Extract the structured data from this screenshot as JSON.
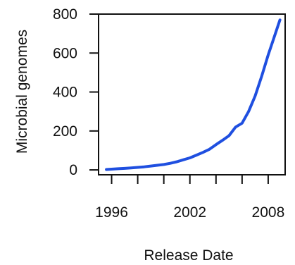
{
  "chart_data": {
    "type": "line",
    "xlabel": "Release Date",
    "ylabel": "Microbial genomes",
    "xlim": [
      1995.0,
      2009.3
    ],
    "ylim": [
      -25,
      800
    ],
    "xticks": [
      1996,
      1998,
      2000,
      2002,
      2004,
      2006,
      2008
    ],
    "xtick_labels": [
      "1996",
      "",
      "",
      "2002",
      "",
      "",
      "2008"
    ],
    "yticks": [
      0,
      200,
      400,
      600,
      800
    ],
    "ytick_labels": [
      "0",
      "200",
      "400",
      "600",
      "800"
    ],
    "grid": false,
    "series": [
      {
        "color": "#1f4fe0",
        "x": [
          1995.6,
          1996.0,
          1996.5,
          1997.0,
          1997.5,
          1998.0,
          1998.5,
          1999.0,
          1999.5,
          2000.0,
          2000.5,
          2001.0,
          2001.5,
          2002.0,
          2002.5,
          2003.0,
          2003.5,
          2004.0,
          2004.5,
          2005.0,
          2005.5,
          2006.0,
          2006.5,
          2007.0,
          2007.5,
          2008.0,
          2008.5,
          2008.9
        ],
        "y": [
          2,
          4,
          6,
          8,
          10,
          13,
          16,
          20,
          24,
          28,
          34,
          42,
          52,
          62,
          76,
          90,
          106,
          130,
          152,
          176,
          220,
          240,
          300,
          380,
          480,
          590,
          690,
          770
        ]
      }
    ]
  }
}
